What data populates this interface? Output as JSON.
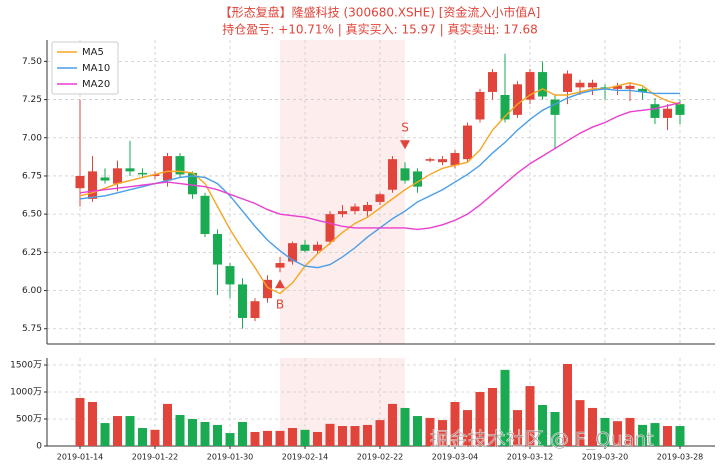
{
  "chart_data": [
    {
      "type": "candlestick",
      "title": "【形态复盘】隆盛科技 (300680.XSHE) [资金流入小市值A]",
      "subtitle": "持仓盈亏: +10.71% | 真实买入: 15.97 | 真实卖出: 17.68",
      "categories": [
        "2019-01-14",
        null,
        null,
        null,
        null,
        null,
        "2019-01-22",
        null,
        null,
        null,
        null,
        null,
        "2019-01-30",
        null,
        null,
        null,
        null,
        null,
        "2019-02-14",
        null,
        null,
        null,
        null,
        null,
        "2019-02-22",
        null,
        null,
        null,
        null,
        null,
        "2019-03-04",
        null,
        null,
        null,
        null,
        null,
        "2019-03-12",
        null,
        null,
        null,
        null,
        null,
        "2019-03-20",
        null,
        null,
        null,
        null,
        null,
        "2019-03-28"
      ],
      "open": [
        6.67,
        6.6,
        6.74,
        6.7,
        6.8,
        6.77,
        6.75,
        6.72,
        6.88,
        6.77,
        6.62,
        6.37,
        6.16,
        6.04,
        5.82,
        5.95,
        6.15,
        6.19,
        6.3,
        6.26,
        6.32,
        6.5,
        6.52,
        6.52,
        6.58,
        6.66,
        6.8,
        6.78,
        6.85,
        6.84,
        6.82,
        6.86,
        7.12,
        7.3,
        7.28,
        7.15,
        7.25,
        7.43,
        7.25,
        7.3,
        7.33,
        7.33,
        7.33,
        7.32,
        7.32,
        7.32,
        7.22,
        7.13,
        7.22
      ],
      "high": [
        7.25,
        6.88,
        6.8,
        6.85,
        6.98,
        6.8,
        6.78,
        6.9,
        6.9,
        6.78,
        6.64,
        6.4,
        6.18,
        6.08,
        5.95,
        6.1,
        6.22,
        6.32,
        6.33,
        6.32,
        6.52,
        6.56,
        6.57,
        6.58,
        6.64,
        6.88,
        6.84,
        6.8,
        6.87,
        6.88,
        6.92,
        7.1,
        7.32,
        7.45,
        7.55,
        7.37,
        7.45,
        7.5,
        7.28,
        7.44,
        7.38,
        7.38,
        7.35,
        7.36,
        7.36,
        7.33,
        7.26,
        7.22,
        7.25
      ],
      "low": [
        6.55,
        6.58,
        6.7,
        6.65,
        6.75,
        6.74,
        6.73,
        6.68,
        6.74,
        6.6,
        6.35,
        5.97,
        5.95,
        5.75,
        5.8,
        5.92,
        6.12,
        6.17,
        6.25,
        6.24,
        6.3,
        6.48,
        6.5,
        6.48,
        6.56,
        6.64,
        6.7,
        6.64,
        6.84,
        6.82,
        6.8,
        6.84,
        7.1,
        7.25,
        7.1,
        7.13,
        7.22,
        7.25,
        6.93,
        7.22,
        7.28,
        7.28,
        7.25,
        7.28,
        7.24,
        7.25,
        7.09,
        7.05,
        7.09
      ],
      "close": [
        6.75,
        6.78,
        6.72,
        6.8,
        6.78,
        6.76,
        6.76,
        6.88,
        6.76,
        6.63,
        6.37,
        6.17,
        6.04,
        5.82,
        5.93,
        6.07,
        6.18,
        6.31,
        6.26,
        6.3,
        6.5,
        6.52,
        6.55,
        6.56,
        6.63,
        6.86,
        6.72,
        6.68,
        6.86,
        6.86,
        6.9,
        7.08,
        7.3,
        7.43,
        7.12,
        7.35,
        7.43,
        7.27,
        7.15,
        7.42,
        7.36,
        7.36,
        7.32,
        7.34,
        7.34,
        7.3,
        7.13,
        7.19,
        7.15
      ],
      "up_color": "#e0443a",
      "down_color": "#1aab52",
      "series": [
        {
          "name": "MA5",
          "color": "#f5a623",
          "values": [
            6.62,
            6.64,
            6.67,
            6.7,
            6.72,
            6.74,
            6.76,
            6.78,
            6.78,
            6.77,
            6.7,
            6.55,
            6.4,
            6.27,
            6.15,
            6.02,
            5.98,
            6.05,
            6.16,
            6.24,
            6.31,
            6.38,
            6.44,
            6.48,
            6.54,
            6.6,
            6.66,
            6.71,
            6.76,
            6.8,
            6.82,
            6.84,
            6.92,
            7.05,
            7.14,
            7.22,
            7.28,
            7.32,
            7.28,
            7.28,
            7.3,
            7.32,
            7.32,
            7.34,
            7.36,
            7.34,
            7.28,
            7.24,
            7.22
          ]
        },
        {
          "name": "MA10",
          "color": "#4a9ee8",
          "values": [
            6.6,
            6.61,
            6.62,
            6.64,
            6.66,
            6.68,
            6.7,
            6.72,
            6.74,
            6.75,
            6.74,
            6.7,
            6.62,
            6.52,
            6.42,
            6.33,
            6.26,
            6.2,
            6.16,
            6.15,
            6.17,
            6.22,
            6.28,
            6.35,
            6.41,
            6.47,
            6.52,
            6.58,
            6.62,
            6.66,
            6.71,
            6.76,
            6.82,
            6.9,
            6.97,
            7.05,
            7.12,
            7.18,
            7.22,
            7.26,
            7.29,
            7.31,
            7.32,
            7.31,
            7.31,
            7.3,
            7.29,
            7.29,
            7.29
          ]
        },
        {
          "name": "MA20",
          "color": "#e83fd0",
          "values": [
            6.64,
            6.65,
            6.66,
            6.67,
            6.68,
            6.69,
            6.7,
            6.71,
            6.7,
            6.69,
            6.68,
            6.66,
            6.63,
            6.6,
            6.57,
            6.53,
            6.5,
            6.49,
            6.48,
            6.46,
            6.44,
            6.42,
            6.41,
            6.41,
            6.41,
            6.41,
            6.41,
            6.4,
            6.41,
            6.43,
            6.46,
            6.5,
            6.56,
            6.63,
            6.7,
            6.77,
            6.83,
            6.88,
            6.93,
            6.98,
            7.03,
            7.07,
            7.1,
            7.14,
            7.17,
            7.18,
            7.19,
            7.21,
            7.23
          ]
        }
      ],
      "signals": [
        null,
        null,
        null,
        null,
        null,
        null,
        null,
        null,
        null,
        null,
        null,
        null,
        null,
        null,
        null,
        null,
        "B",
        null,
        null,
        null,
        null,
        null,
        null,
        null,
        null,
        null,
        "S",
        null,
        null,
        null,
        null,
        null,
        null,
        null,
        null,
        null,
        null,
        null,
        null,
        null,
        null,
        null,
        null,
        null,
        null,
        null,
        null,
        null,
        null
      ],
      "ylim": [
        5.65,
        7.64
      ],
      "yticks": [
        5.75,
        {
          "value": 6,
          "label": "6.00"
        },
        6.25,
        {
          "value": 6.5,
          "label": "6.50"
        },
        6.75,
        {
          "value": 7,
          "label": "7.00"
        },
        7.25,
        {
          "value": 7.5,
          "label": "7.50"
        }
      ],
      "grid": true,
      "legend": "upper left"
    },
    {
      "type": "bar",
      "values": [
        890,
        815,
        425,
        555,
        555,
        333,
        300,
        780,
        575,
        500,
        445,
        390,
        240,
        445,
        260,
        280,
        280,
        333,
        300,
        260,
        410,
        370,
        370,
        390,
        480,
        780,
        705,
        555,
        520,
        480,
        815,
        665,
        1000,
        1075,
        1410,
        665,
        1110,
        760,
        630,
        1520,
        850,
        705,
        520,
        460,
        520,
        390,
        425,
        370,
        370
      ],
      "ylim": [
        0,
        1630
      ],
      "yticks": [
        0,
        {
          "value": 500,
          "label": "500万"
        },
        {
          "value": 1000,
          "label": "1000万"
        },
        {
          "value": 1500,
          "label": "1500万"
        }
      ],
      "grid": true,
      "watermark": "掘金技术社区 @ F_Quant"
    }
  ]
}
